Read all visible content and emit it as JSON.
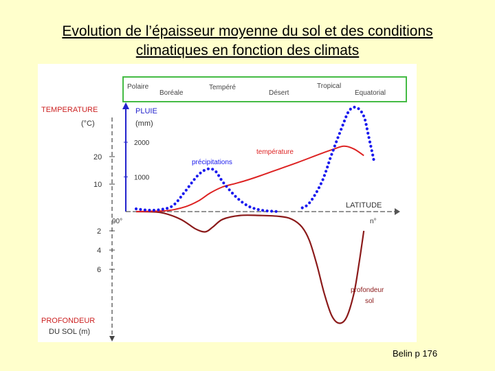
{
  "slide": {
    "title_line1": "Evolution de l’épaisseur moyenne du sol et des conditions",
    "title_line2": "climatiques en fonction des climats",
    "credit": "Belin p 176"
  },
  "colors": {
    "temperature": "#dd2222",
    "rain": "#1a1aee",
    "soil": "#8b1a1a",
    "climate_box": "#44bb44",
    "rain_axis": "#2222cc",
    "temperature_axis_text": "#cc2222",
    "depth_axis_text": "#cc2222"
  },
  "chart_data": {
    "type": "line",
    "climate_zones": {
      "labels": [
        "Polaire",
        "Boréale",
        "Tempéré",
        "Désert",
        "Tropical",
        "Equatorial"
      ]
    },
    "axes": {
      "temperature": {
        "label": "TEMPERATURE",
        "unit": "(°C)",
        "ticks": [
          "10",
          "20"
        ]
      },
      "rain": {
        "label": "PLUIE",
        "unit": "(mm)",
        "ticks": [
          "1000",
          "2000"
        ]
      },
      "depth": {
        "label": "PROFONDEUR",
        "unit": "DU SOL (m)",
        "ticks": [
          "2",
          "4",
          "6"
        ]
      },
      "latitude": {
        "label": "LATITUDE",
        "start": "90°",
        "end": "n°"
      }
    },
    "series": [
      {
        "name": "température",
        "unit": "°C",
        "style": "solid",
        "points": [
          [
            0,
            0
          ],
          [
            0.05,
            0.1
          ],
          [
            0.13,
            0.4
          ],
          [
            0.2,
            1.8
          ],
          [
            0.25,
            3.8
          ],
          [
            0.3,
            6.8
          ],
          [
            0.35,
            9.0
          ],
          [
            0.4,
            10.2
          ],
          [
            0.45,
            11.5
          ],
          [
            0.5,
            13.0
          ],
          [
            0.55,
            14.6
          ],
          [
            0.6,
            16.2
          ],
          [
            0.65,
            17.8
          ],
          [
            0.7,
            19.5
          ],
          [
            0.75,
            21.2
          ],
          [
            0.8,
            22.8
          ],
          [
            0.84,
            23.8
          ],
          [
            0.88,
            22.8
          ],
          [
            0.92,
            20.4
          ]
        ]
      },
      {
        "name": "précipitations",
        "unit": "mm",
        "style": "dotted",
        "points": [
          [
            0,
            80
          ],
          [
            0.05,
            40
          ],
          [
            0.1,
            60
          ],
          [
            0.15,
            180
          ],
          [
            0.2,
            600
          ],
          [
            0.25,
            1050
          ],
          [
            0.29,
            1230
          ],
          [
            0.32,
            1170
          ],
          [
            0.35,
            860
          ],
          [
            0.4,
            450
          ],
          [
            0.45,
            170
          ],
          [
            0.5,
            50
          ],
          [
            0.55,
            10
          ],
          [
            0.6,
            0
          ],
          [
            0.62,
            0
          ],
          [
            0.66,
            80
          ],
          [
            0.7,
            250
          ],
          [
            0.75,
            850
          ],
          [
            0.79,
            1650
          ],
          [
            0.83,
            2400
          ],
          [
            0.86,
            2900
          ],
          [
            0.89,
            3000
          ],
          [
            0.92,
            2750
          ],
          [
            0.94,
            2150
          ],
          [
            0.96,
            1500
          ]
        ]
      },
      {
        "name": "profondeur sol",
        "unit": "m",
        "style": "solid",
        "points": [
          [
            0,
            0
          ],
          [
            0.1,
            0.1
          ],
          [
            0.18,
            0.8
          ],
          [
            0.24,
            1.8
          ],
          [
            0.28,
            2.1
          ],
          [
            0.31,
            1.6
          ],
          [
            0.35,
            0.8
          ],
          [
            0.42,
            0.4
          ],
          [
            0.5,
            0.4
          ],
          [
            0.58,
            0.5
          ],
          [
            0.63,
            0.8
          ],
          [
            0.67,
            1.6
          ],
          [
            0.7,
            3.0
          ],
          [
            0.73,
            5.5
          ],
          [
            0.76,
            8.5
          ],
          [
            0.79,
            10.8
          ],
          [
            0.82,
            11.6
          ],
          [
            0.85,
            11.0
          ],
          [
            0.88,
            8.5
          ],
          [
            0.9,
            5.5
          ],
          [
            0.92,
            2.0
          ]
        ]
      }
    ],
    "annotations": [
      "précipitations",
      "température",
      "profondeur",
      "sol"
    ]
  }
}
